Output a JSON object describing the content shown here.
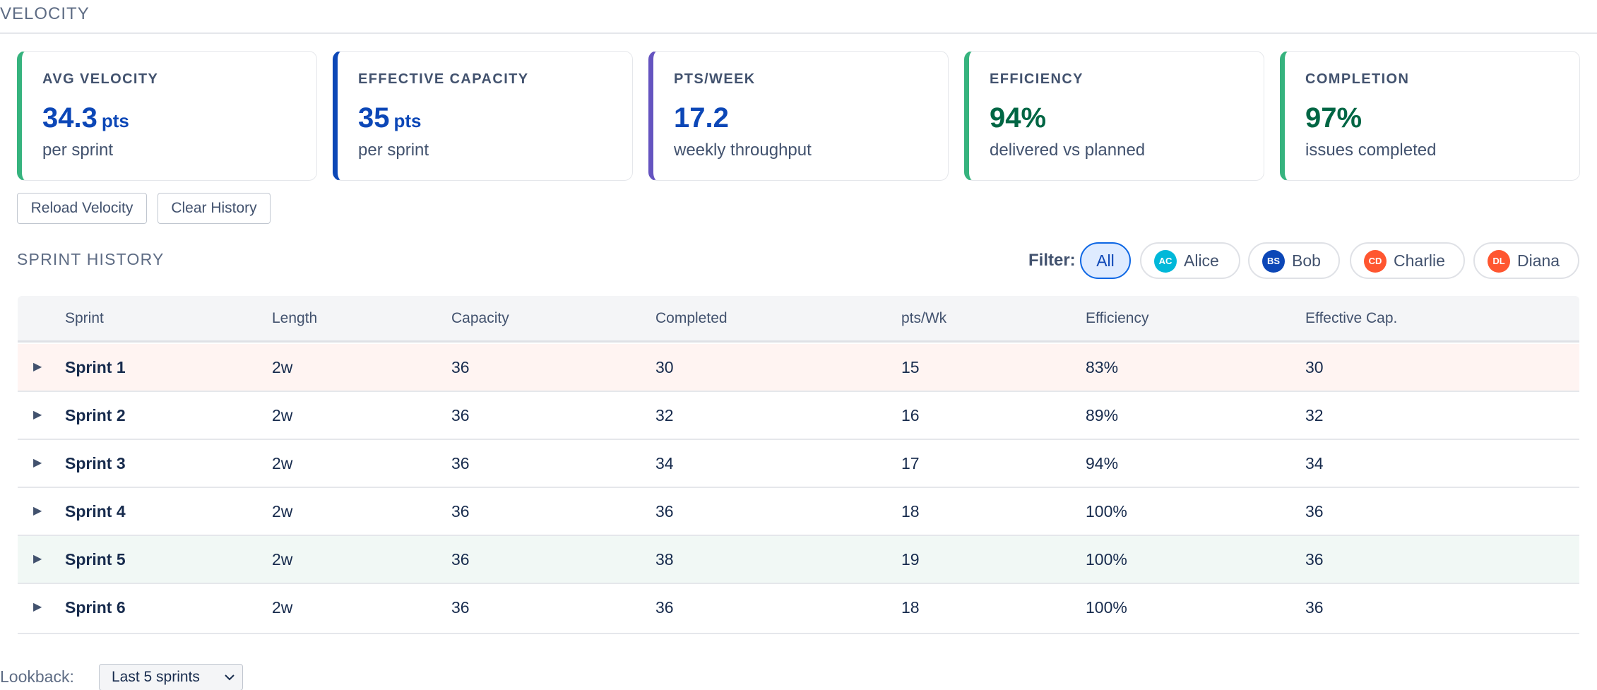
{
  "page": {
    "title": "VELOCITY"
  },
  "cards": [
    {
      "label": "AVG VELOCITY",
      "value": "34.3",
      "unit": "pts",
      "sub": "per sprint",
      "accent": "#36b37e",
      "value_color": "#0c47b7"
    },
    {
      "label": "EFFECTIVE CAPACITY",
      "value": "35",
      "unit": "pts",
      "sub": "per sprint",
      "accent": "#0c47b7",
      "value_color": "#0c47b7"
    },
    {
      "label": "PTS/WEEK",
      "value": "17.2",
      "unit": "",
      "sub": "weekly throughput",
      "accent": "#6554c0",
      "value_color": "#0c47b7"
    },
    {
      "label": "EFFICIENCY",
      "value": "94%",
      "unit": "",
      "sub": "delivered vs planned",
      "accent": "#36b37e",
      "value_color": "#006644"
    },
    {
      "label": "COMPLETION",
      "value": "97%",
      "unit": "",
      "sub": "issues completed",
      "accent": "#36b37e",
      "value_color": "#006644"
    }
  ],
  "actions": {
    "reload": "Reload Velocity",
    "clear": "Clear History"
  },
  "history": {
    "title": "SPRINT HISTORY",
    "filter_label": "Filter:",
    "filters": [
      {
        "label": "All",
        "active": true
      },
      {
        "label": "Alice",
        "initials": "AC",
        "color": "#00b8d9"
      },
      {
        "label": "Bob",
        "initials": "BS",
        "color": "#0c47b7"
      },
      {
        "label": "Charlie",
        "initials": "CD",
        "color": "#ff5630"
      },
      {
        "label": "Diana",
        "initials": "DL",
        "color": "#ff5630"
      }
    ],
    "columns": [
      "Sprint",
      "Length",
      "Capacity",
      "Completed",
      "pts/Wk",
      "Efficiency",
      "Effective Cap."
    ],
    "rows": [
      {
        "sprint": "Sprint 1",
        "length": "2w",
        "capacity": "36",
        "completed": "30",
        "pts_wk": "15",
        "efficiency": "83%",
        "effective_cap": "30",
        "bg": "#fff4f2"
      },
      {
        "sprint": "Sprint 2",
        "length": "2w",
        "capacity": "36",
        "completed": "32",
        "pts_wk": "16",
        "efficiency": "89%",
        "effective_cap": "32",
        "bg": "#ffffff"
      },
      {
        "sprint": "Sprint 3",
        "length": "2w",
        "capacity": "36",
        "completed": "34",
        "pts_wk": "17",
        "efficiency": "94%",
        "effective_cap": "34",
        "bg": "#ffffff"
      },
      {
        "sprint": "Sprint 4",
        "length": "2w",
        "capacity": "36",
        "completed": "36",
        "pts_wk": "18",
        "efficiency": "100%",
        "effective_cap": "36",
        "bg": "#ffffff"
      },
      {
        "sprint": "Sprint 5",
        "length": "2w",
        "capacity": "36",
        "completed": "38",
        "pts_wk": "19",
        "efficiency": "100%",
        "effective_cap": "36",
        "bg": "#f1f8f5"
      },
      {
        "sprint": "Sprint 6",
        "length": "2w",
        "capacity": "36",
        "completed": "36",
        "pts_wk": "18",
        "efficiency": "100%",
        "effective_cap": "36",
        "bg": "#ffffff"
      }
    ]
  },
  "lookback": {
    "label": "Lookback:",
    "value": "Last 5 sprints"
  },
  "icons": {
    "row_toggle": "caret-right-icon",
    "select": "chevron-down-icon"
  }
}
